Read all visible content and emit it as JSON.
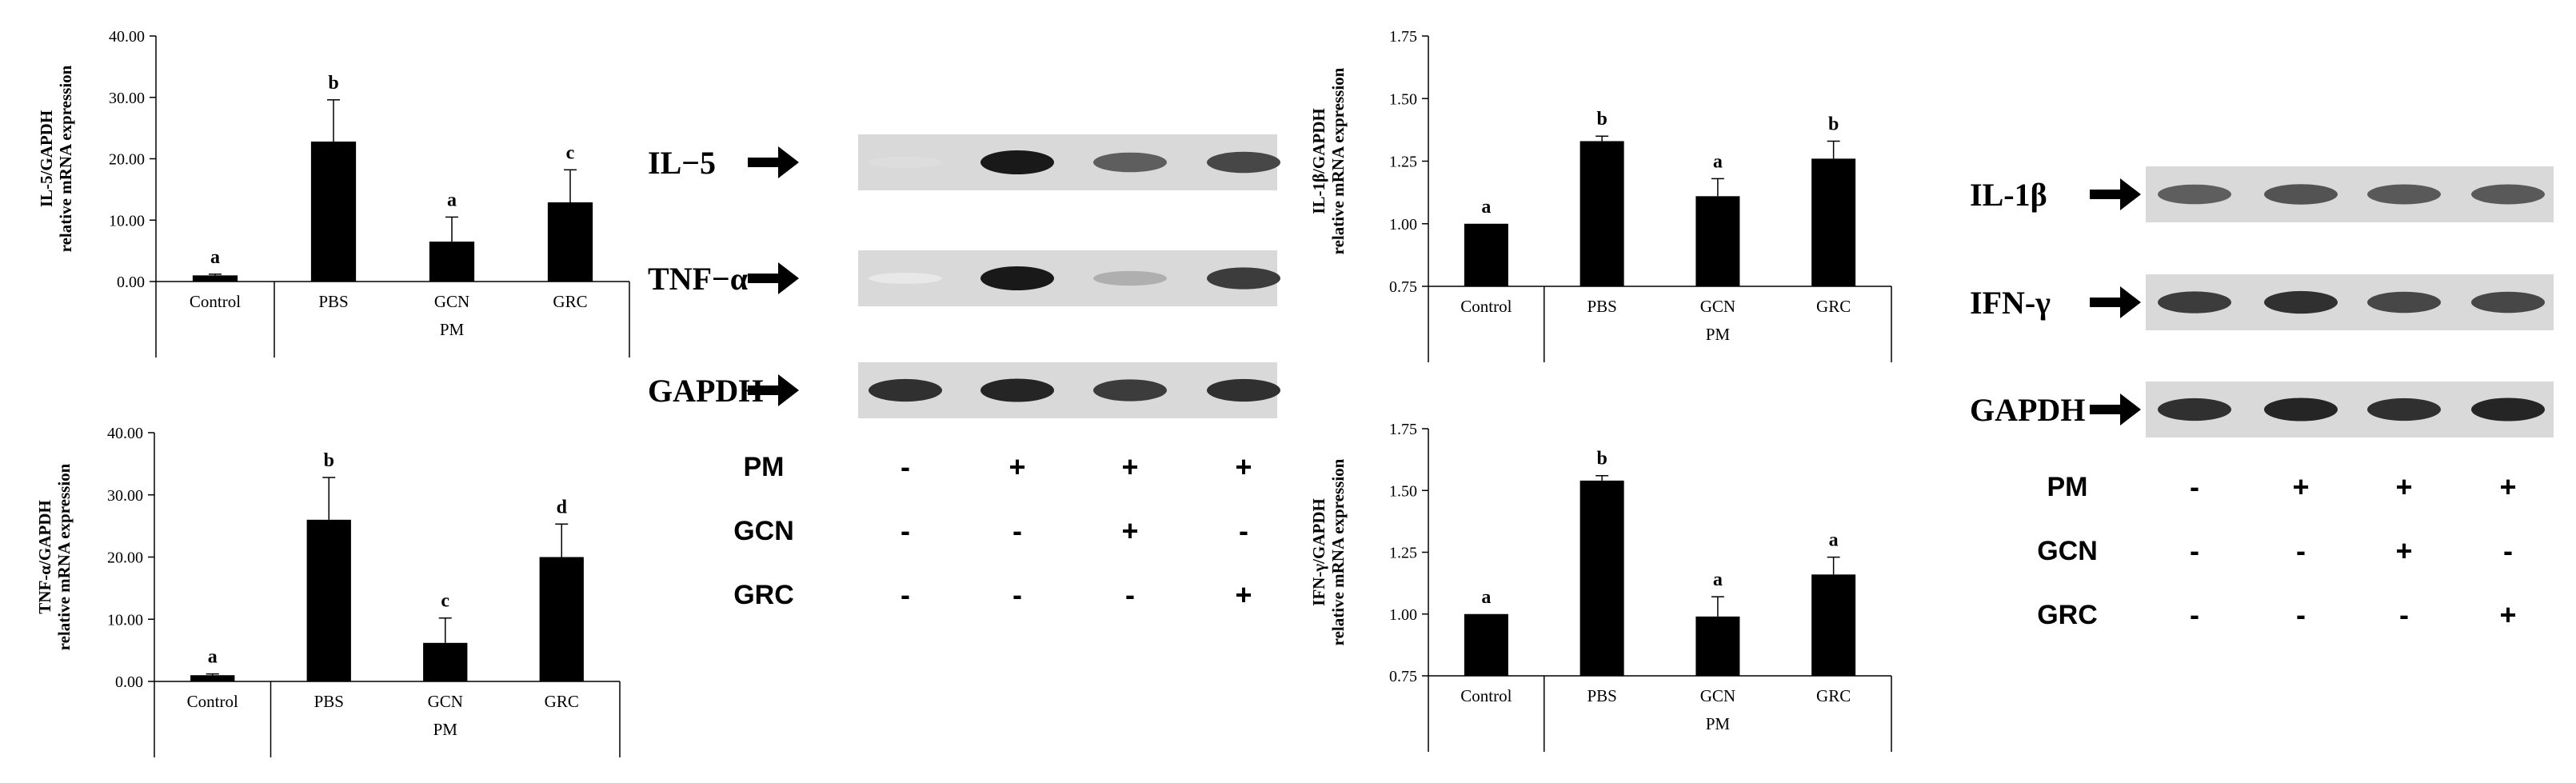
{
  "chart_data": [
    {
      "type": "bar",
      "ylabel": [
        "IL-5/GAPDH",
        "relative mRNA expression"
      ],
      "ylim": [
        0,
        40
      ],
      "yticks": [
        "0.00",
        "10.00",
        "20.00",
        "30.00",
        "40.00"
      ],
      "categories": [
        "Control",
        "PBS",
        "GCN",
        "GRC"
      ],
      "group_label": "PM",
      "values": [
        1.0,
        22.8,
        6.5,
        12.9
      ],
      "errors": [
        0.2,
        6.8,
        4.0,
        5.3
      ],
      "letters": [
        "a",
        "b",
        "a",
        "c"
      ]
    },
    {
      "type": "bar",
      "ylabel": [
        "TNF-α/GAPDH",
        "relative mRNA expression"
      ],
      "ylim": [
        0,
        40
      ],
      "yticks": [
        "0.00",
        "10.00",
        "20.00",
        "30.00",
        "40.00"
      ],
      "categories": [
        "Control",
        "PBS",
        "GCN",
        "GRC"
      ],
      "group_label": "PM",
      "values": [
        1.0,
        26.0,
        6.2,
        20.0
      ],
      "errors": [
        0.2,
        6.8,
        4.0,
        5.3
      ],
      "letters": [
        "a",
        "b",
        "c",
        "d"
      ]
    },
    {
      "type": "bar",
      "ylabel": [
        "IL-1β/GAPDH",
        "relative mRNA expression"
      ],
      "ylim": [
        0.75,
        1.75
      ],
      "yticks": [
        "0.75",
        "1.00",
        "1.25",
        "1.50",
        "1.75"
      ],
      "categories": [
        "Control",
        "PBS",
        "GCN",
        "GRC"
      ],
      "group_label": "PM",
      "values": [
        1.0,
        1.33,
        1.11,
        1.26
      ],
      "errors": [
        0.0,
        0.02,
        0.07,
        0.07
      ],
      "letters": [
        "a",
        "b",
        "a",
        "b"
      ]
    },
    {
      "type": "bar",
      "ylabel": [
        "IFN-γ/GAPDH",
        "relative mRNA expression"
      ],
      "ylim": [
        0.75,
        1.75
      ],
      "yticks": [
        "0.75",
        "1.00",
        "1.25",
        "1.50",
        "1.75"
      ],
      "categories": [
        "Control",
        "PBS",
        "GCN",
        "GRC"
      ],
      "group_label": "PM",
      "values": [
        1.0,
        1.54,
        0.99,
        1.16
      ],
      "errors": [
        0.0,
        0.02,
        0.08,
        0.07
      ],
      "letters": [
        "a",
        "b",
        "a",
        "a"
      ]
    }
  ],
  "gels": [
    {
      "rows": [
        "IL−5",
        "TNF−α",
        "GAPDH"
      ],
      "band_intensity": [
        [
          0.15,
          1.0,
          0.7,
          0.8
        ],
        [
          0.1,
          1.0,
          0.35,
          0.85
        ],
        [
          0.9,
          0.95,
          0.85,
          0.9
        ]
      ],
      "conditions": [
        {
          "label": "PM",
          "signs": [
            "-",
            "+",
            "+",
            "+"
          ]
        },
        {
          "label": "GCN",
          "signs": [
            "-",
            "-",
            "+",
            "-"
          ]
        },
        {
          "label": "GRC",
          "signs": [
            "-",
            "-",
            "-",
            "+"
          ]
        }
      ]
    },
    {
      "rows": [
        "IL-1β",
        "IFN-γ",
        "GAPDH"
      ],
      "band_intensity": [
        [
          0.7,
          0.75,
          0.72,
          0.72
        ],
        [
          0.85,
          0.9,
          0.8,
          0.8
        ],
        [
          0.9,
          0.95,
          0.9,
          0.95
        ]
      ],
      "conditions": [
        {
          "label": "PM",
          "signs": [
            "-",
            "+",
            "+",
            "+"
          ]
        },
        {
          "label": "GCN",
          "signs": [
            "-",
            "-",
            "+",
            "-"
          ]
        },
        {
          "label": "GRC",
          "signs": [
            "-",
            "-",
            "-",
            "+"
          ]
        }
      ]
    }
  ]
}
